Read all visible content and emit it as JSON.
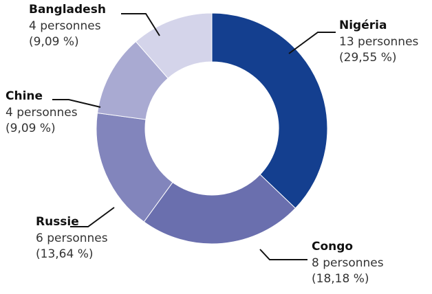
{
  "chart_data": {
    "type": "donut",
    "categories": [
      "Nigéria",
      "Congo",
      "Russie",
      "Chine",
      "Bangladesh"
    ],
    "values": [
      13,
      8,
      6,
      4,
      4
    ],
    "value_labels": [
      "13 personnes",
      "8 personnes",
      "6 personnes",
      "4 personnes",
      "4 personnes"
    ],
    "percentages": [
      29.55,
      18.18,
      13.64,
      9.09,
      9.09
    ],
    "percentage_labels": [
      "(29,55 %)",
      "(18,18 %)",
      "(13,64 %)",
      "(9,09 %)",
      "(9,09 %)"
    ],
    "colors": [
      "#143f8f",
      "#6a6fae",
      "#8285bc",
      "#a9aad2",
      "#d4d4ea"
    ]
  }
}
